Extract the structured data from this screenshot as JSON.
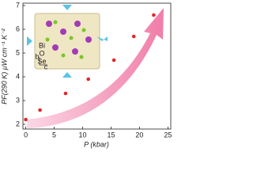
{
  "chart_data": {
    "type": "scatter",
    "x_label": "P (kbar)",
    "y_label": "PF(290 K) μW cm⁻¹ K⁻²",
    "x": [
      0,
      2.5,
      7,
      11,
      15.5,
      19,
      22.5
    ],
    "values": [
      2.2,
      2.6,
      3.3,
      3.9,
      4.7,
      5.7,
      6.6
    ],
    "color": "#e3262a",
    "xlim": [
      -0.5,
      25.5
    ],
    "xticks": [
      0,
      5,
      10,
      15,
      20,
      25
    ],
    "ylim": [
      1.8,
      7.1
    ],
    "yticks": [
      2,
      3,
      4,
      5,
      6,
      7
    ],
    "inset_labels": [
      "Bi",
      "O",
      "Se",
      "b",
      "c"
    ]
  }
}
